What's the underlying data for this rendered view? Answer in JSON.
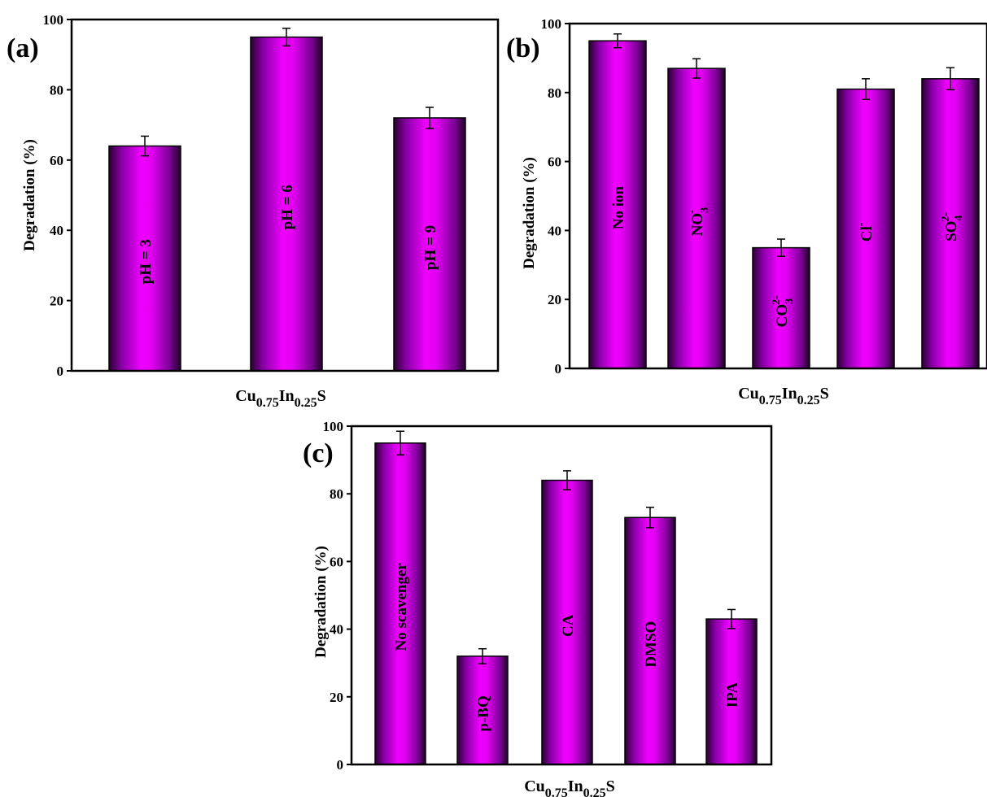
{
  "chart_data": [
    {
      "type": "bar",
      "panel_label": "(a)",
      "categories": [
        "pH = 3",
        "pH = 6",
        "pH = 9"
      ],
      "values": [
        64,
        95,
        72
      ],
      "errors": [
        2.8,
        2.5,
        3
      ],
      "ylabel": "Degradation (%)",
      "xlabel": {
        "base": "Cu",
        "sub1": "0.75",
        "mid": "In",
        "sub2": "0.25",
        "end": "S"
      },
      "ylim": [
        0,
        100
      ],
      "yticks": [
        "0",
        "20",
        "40",
        "60",
        "80",
        "100"
      ],
      "bar_color": "#e000ff"
    },
    {
      "type": "bar",
      "panel_label": "(b)",
      "categories": [
        {
          "base": "No ion",
          "sub": "",
          "sup": ""
        },
        {
          "base": "NO",
          "sub": "3",
          "sup": "-"
        },
        {
          "base": "CO",
          "sub": "3",
          "sup": "2-"
        },
        {
          "base": "Cl",
          "sub": "",
          "sup": "-"
        },
        {
          "base": "SO",
          "sub": "4",
          "sup": "2-"
        }
      ],
      "values": [
        95,
        87,
        35,
        81,
        84
      ],
      "errors": [
        2,
        2.8,
        2.5,
        3,
        3.2
      ],
      "ylabel": "Degradation (%)",
      "xlabel": {
        "base": "Cu",
        "sub1": "0.75",
        "mid": "In",
        "sub2": "0.25",
        "end": "S"
      },
      "ylim": [
        0,
        100
      ],
      "yticks": [
        "0",
        "20",
        "40",
        "60",
        "80",
        "100"
      ],
      "bar_color": "#e000ff"
    },
    {
      "type": "bar",
      "panel_label": "(c)",
      "categories": [
        "No scavenger",
        "p-BQ",
        "CA",
        "DMSO",
        "IPA"
      ],
      "values": [
        95,
        32,
        84,
        73,
        43
      ],
      "errors": [
        3.5,
        2.2,
        2.8,
        3,
        2.8
      ],
      "ylabel": "Degradation (%)",
      "xlabel": {
        "base": "Cu",
        "sub1": "0.75",
        "mid": "In",
        "sub2": "0.25",
        "end": "S"
      },
      "ylim": [
        0,
        100
      ],
      "yticks": [
        "0",
        "20",
        "40",
        "60",
        "80",
        "100"
      ],
      "bar_color": "#e000ff"
    }
  ]
}
